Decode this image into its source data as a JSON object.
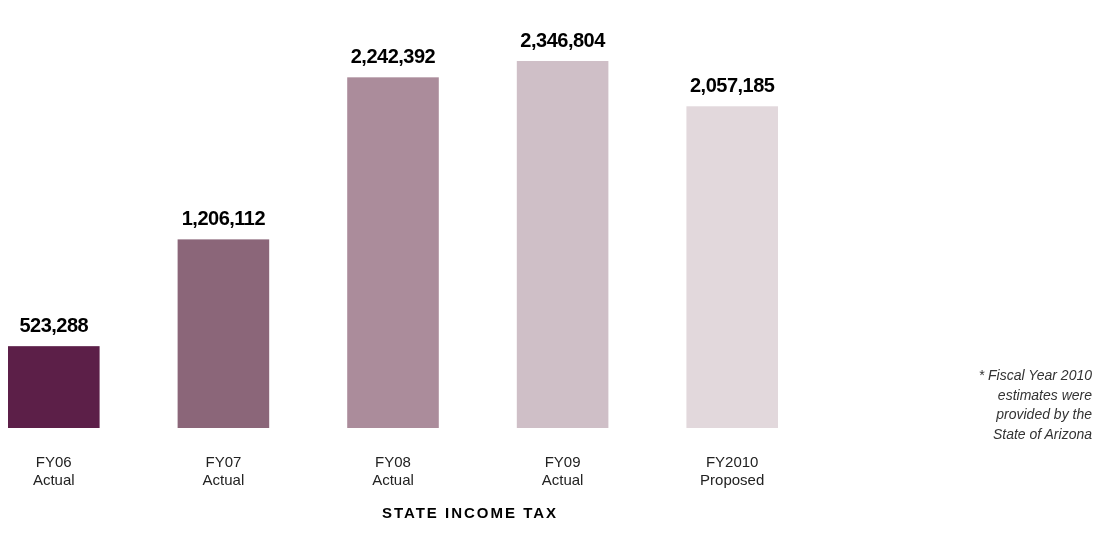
{
  "chart_data": {
    "type": "bar",
    "title": "STATE INCOME TAX",
    "categories": [
      "FY06\nActual",
      "FY07\nActual",
      "FY08\nActual",
      "FY09\nActual",
      "FY2010\nProposed"
    ],
    "values": [
      523288,
      1206112,
      2242392,
      2346804,
      2057185
    ],
    "colors": [
      "#5c1f48",
      "#8b6679",
      "#ab8c9b",
      "#cfbfc7",
      "#e2d8dc"
    ],
    "value_labels": [
      "523,288",
      "1,206,112",
      "2,242,392",
      "2,346,804",
      "2,057,185"
    ],
    "annotations": [
      "* Fiscal Year 2010\nestimates were\nprovided by the\nState of Arizona"
    ]
  }
}
